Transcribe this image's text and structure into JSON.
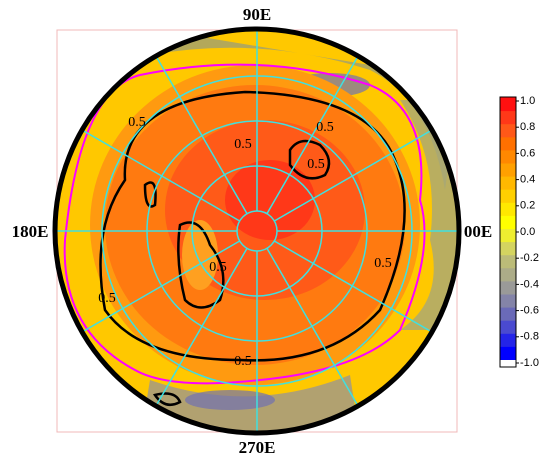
{
  "labels": {
    "top": "90E",
    "left": "180E",
    "right": "00E",
    "bottom": "270E"
  },
  "contour_labels": [
    "0.5",
    "0.5",
    "0.5",
    "0.5",
    "0.5",
    "0.5",
    "0.5",
    "0.5"
  ],
  "colorbar": {
    "lim": [
      -1,
      1
    ],
    "colors": [
      "#0000ff",
      "#2424e8",
      "#4a4ad0",
      "#6a6ab8",
      "#8484a8",
      "#9a9a98",
      "#acac88",
      "#bcbc78",
      "#d4d460",
      "#eeee30",
      "#ffff00",
      "#ffe800",
      "#ffd000",
      "#ffb800",
      "#ffa000",
      "#ff8800",
      "#ff7000",
      "#ff5818",
      "#ff3818",
      "#ff1010"
    ],
    "ticks": [
      {
        "value": 1,
        "label": "1.0"
      },
      {
        "value": 0.8,
        "label": "0.8"
      },
      {
        "value": 0.6,
        "label": "0.6"
      },
      {
        "value": 0.4,
        "label": "0.4"
      },
      {
        "value": 0.2,
        "label": "0.2"
      },
      {
        "value": 0,
        "label": "0.0"
      },
      {
        "value": -0.2,
        "label": "-0.2"
      },
      {
        "value": -0.4,
        "label": "-0.4"
      },
      {
        "value": -0.6,
        "label": "-0.6"
      },
      {
        "value": -0.8,
        "label": "-0.8"
      },
      {
        "value": -1,
        "label": "-1.0"
      }
    ]
  }
}
